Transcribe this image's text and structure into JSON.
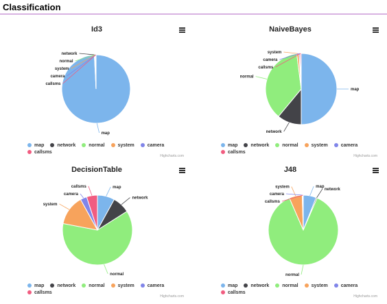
{
  "page": {
    "title": "Classification"
  },
  "chart_data": [
    {
      "type": "pie",
      "title": "Id3",
      "credits": "Highcharts.com",
      "slices": [
        {
          "name": "map",
          "value": 99.2,
          "color": "#7cb5ec"
        },
        {
          "name": "network",
          "value": 0.2,
          "color": "#434348"
        },
        {
          "name": "normal",
          "value": 0.2,
          "color": "#90ed7d"
        },
        {
          "name": "system",
          "value": 0.2,
          "color": "#f7a35c"
        },
        {
          "name": "camera",
          "value": 0.1,
          "color": "#8085e9"
        },
        {
          "name": "callsms",
          "value": 0.1,
          "color": "#f15c80"
        }
      ]
    },
    {
      "type": "pie",
      "title": "NaiveBayes",
      "credits": "Highcharts.com",
      "slices": [
        {
          "name": "map",
          "value": 50,
          "color": "#7cb5ec"
        },
        {
          "name": "network",
          "value": 11,
          "color": "#434348"
        },
        {
          "name": "normal",
          "value": 37,
          "color": "#90ed7d"
        },
        {
          "name": "system",
          "value": 1,
          "color": "#f7a35c"
        },
        {
          "name": "camera",
          "value": 0.5,
          "color": "#8085e9"
        },
        {
          "name": "callsms",
          "value": 0.5,
          "color": "#f15c80"
        }
      ]
    },
    {
      "type": "pie",
      "title": "DecisionTable",
      "credits": "Highcharts.com",
      "slices": [
        {
          "name": "map",
          "value": 8,
          "color": "#7cb5ec"
        },
        {
          "name": "network",
          "value": 8,
          "color": "#434348"
        },
        {
          "name": "normal",
          "value": 62,
          "color": "#90ed7d"
        },
        {
          "name": "system",
          "value": 14,
          "color": "#f7a35c"
        },
        {
          "name": "camera",
          "value": 3,
          "color": "#8085e9"
        },
        {
          "name": "callsms",
          "value": 5,
          "color": "#f15c80"
        }
      ]
    },
    {
      "type": "pie",
      "title": "J48",
      "credits": "Highcharts.com",
      "slices": [
        {
          "name": "map",
          "value": 6,
          "color": "#7cb5ec"
        },
        {
          "name": "network",
          "value": 0.5,
          "color": "#434348"
        },
        {
          "name": "normal",
          "value": 87,
          "color": "#90ed7d"
        },
        {
          "name": "system",
          "value": 6,
          "color": "#f7a35c"
        },
        {
          "name": "camera",
          "value": 0.3,
          "color": "#8085e9"
        },
        {
          "name": "callsms",
          "value": 0.2,
          "color": "#f15c80"
        }
      ]
    }
  ]
}
